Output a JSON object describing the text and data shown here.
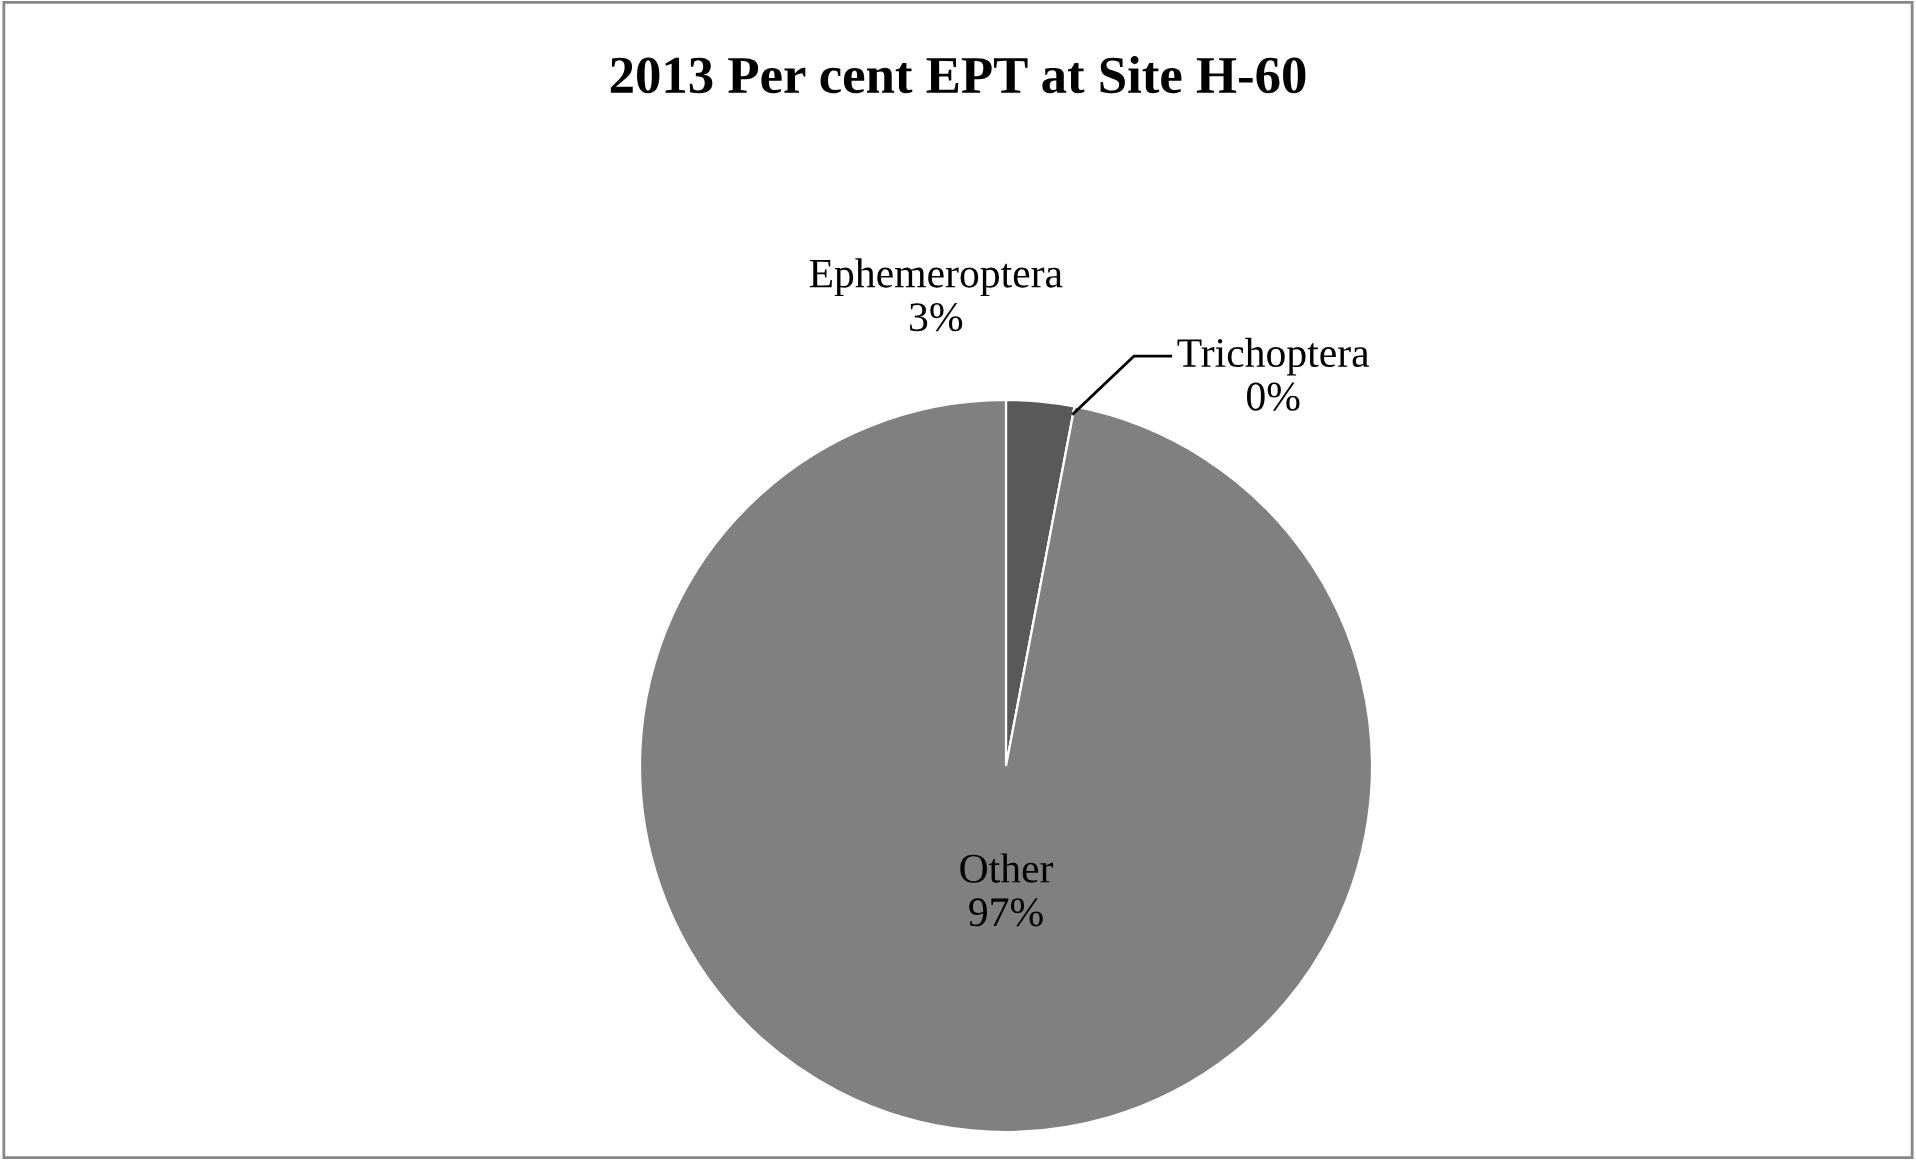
{
  "chart_data": {
    "type": "pie",
    "title": "2013 Per cent EPT at Site H-60",
    "categories": [
      "Ephemeroptera",
      "Trichoptera",
      "Other"
    ],
    "values": [
      3,
      0,
      97
    ],
    "colors": [
      "#595959",
      "#bfbfbf",
      "#808080"
    ],
    "value_labels": [
      "3%",
      "0%",
      "97%"
    ]
  }
}
